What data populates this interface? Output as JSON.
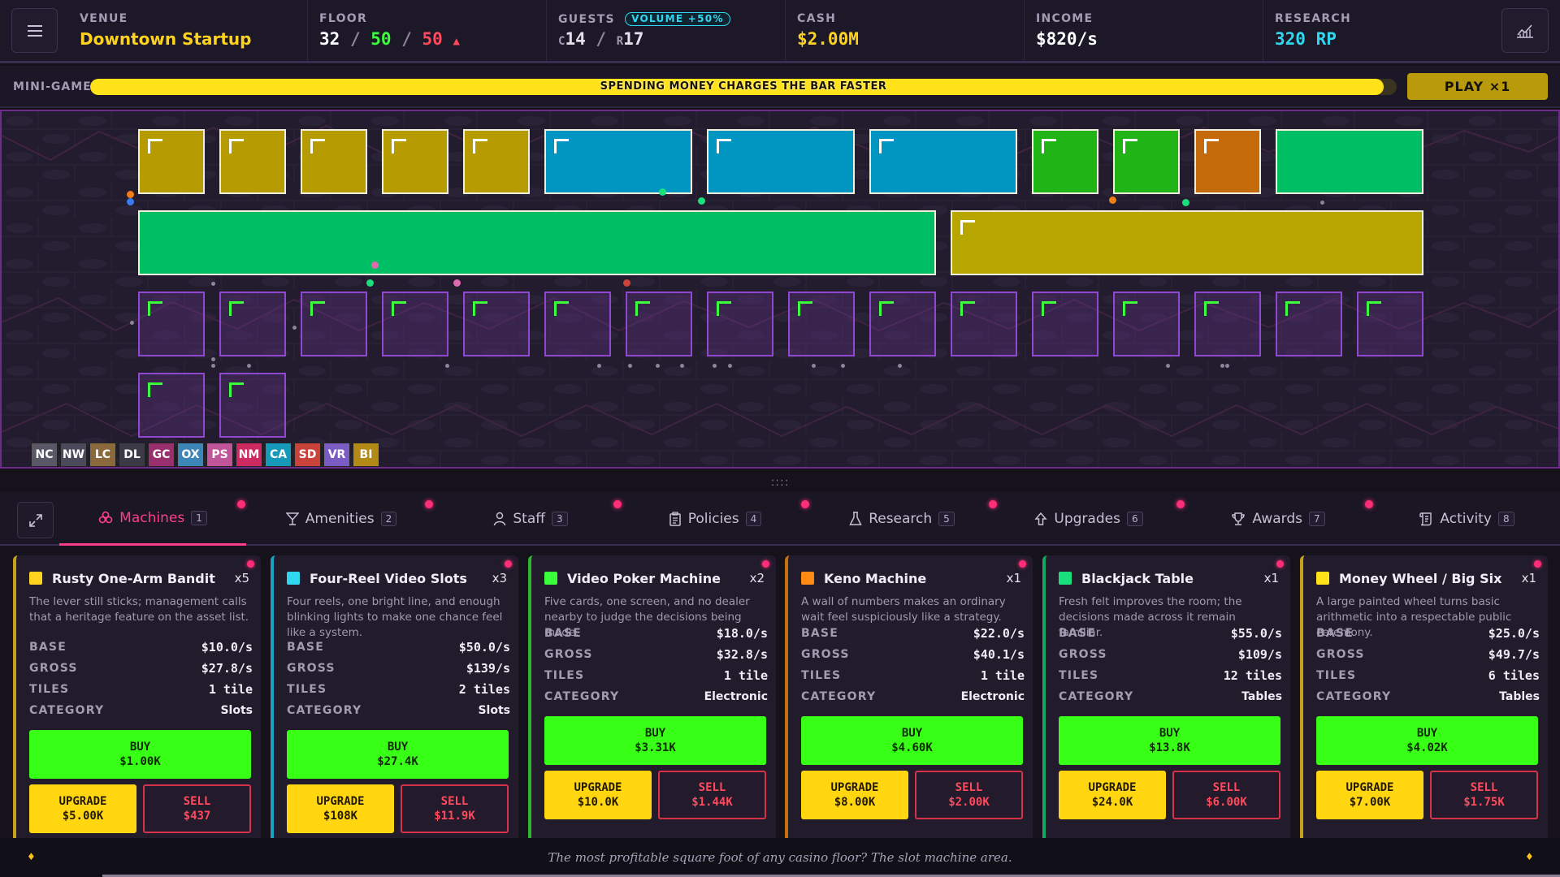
{
  "header": {
    "venue_label": "VENUE",
    "venue_name": "Downtown Startup",
    "floor_label": "FLOOR",
    "floor_used": "32",
    "floor_sep1": "/",
    "floor_capacity": "50",
    "floor_sep2": "/",
    "floor_max": "50",
    "floor_arrow": "▲",
    "guests_label": "GUESTS",
    "guests_badge": "VOLUME +50%",
    "guests_c_prefix": "C",
    "guests_c": "14",
    "guests_sep": "/",
    "guests_r_prefix": "R",
    "guests_r": "17",
    "cash_label": "CASH",
    "cash_value": "$2.00M",
    "income_label": "INCOME",
    "income_value": "$820/s",
    "research_label": "RESEARCH",
    "research_value": "320 RP",
    "colors": {
      "venue": "#ffd21f",
      "floor_used": "#ffffff",
      "floor_capacity": "#3cff3c",
      "floor_max": "#ff4a5e",
      "cash": "#ffd21f",
      "income": "#ffffff",
      "research": "#2fd8f0"
    }
  },
  "minigame": {
    "label": "MINI-GAME",
    "bar_text": "SPENDING MONEY CHARGES THE BAR FASTER",
    "progress": 0.99,
    "play_label": "PLAY ×1"
  },
  "floor": {
    "legend": [
      {
        "code": "NC",
        "color": "#5a5866"
      },
      {
        "code": "NW",
        "color": "#4b4a5a"
      },
      {
        "code": "LC",
        "color": "#8a6a3c"
      },
      {
        "code": "DL",
        "color": "#3d3a48"
      },
      {
        "code": "GC",
        "color": "#9a2f6e"
      },
      {
        "code": "OX",
        "color": "#3c86b8"
      },
      {
        "code": "PS",
        "color": "#c0559a"
      },
      {
        "code": "NM",
        "color": "#cc2a60"
      },
      {
        "code": "CA",
        "color": "#1699b8"
      },
      {
        "code": "SD",
        "color": "#c9433a"
      },
      {
        "code": "VR",
        "color": "#7b5cc4"
      },
      {
        "code": "BI",
        "color": "#b38a16"
      }
    ]
  },
  "tabs": [
    {
      "label": "Machines",
      "count": "1",
      "icon": "slot-machine-icon",
      "active": true
    },
    {
      "label": "Amenities",
      "count": "2",
      "icon": "cocktail-icon",
      "active": false
    },
    {
      "label": "Staff",
      "count": "3",
      "icon": "person-icon",
      "active": false
    },
    {
      "label": "Policies",
      "count": "4",
      "icon": "clipboard-icon",
      "active": false
    },
    {
      "label": "Research",
      "count": "5",
      "icon": "flask-icon",
      "active": false
    },
    {
      "label": "Upgrades",
      "count": "6",
      "icon": "arrow-up-icon",
      "active": false
    },
    {
      "label": "Awards",
      "count": "7",
      "icon": "trophy-icon",
      "active": false
    },
    {
      "label": "Activity",
      "count": "8",
      "icon": "scroll-icon",
      "active": false
    }
  ],
  "cards": [
    {
      "name": "Rusty One-Arm Bandit",
      "qty": "x5",
      "color": "#ffd21f",
      "border": "#c6a11b",
      "desc": "The lever still sticks; management calls that a heritage feature on the asset list.",
      "base_label": "BASE",
      "base": "$10.0/s",
      "gross_label": "GROSS",
      "gross": "$27.8/s",
      "tiles_label": "TILES",
      "tiles": "1 tile",
      "category_label": "CATEGORY",
      "category": "Slots",
      "buy_label": "BUY",
      "buy_price": "$1.00K",
      "upgrade_label": "UPGRADE",
      "upgrade_price": "$5.00K",
      "sell_label": "SELL",
      "sell_price": "$437"
    },
    {
      "name": "Four-Reel Video Slots",
      "qty": "x3",
      "color": "#2fd8f0",
      "border": "#1c9fc0",
      "desc": "Four reels, one bright line, and enough blinking lights to make one chance feel like a system.",
      "base_label": "BASE",
      "base": "$50.0/s",
      "gross_label": "GROSS",
      "gross": "$139/s",
      "tiles_label": "TILES",
      "tiles": "2 tiles",
      "category_label": "CATEGORY",
      "category": "Slots",
      "buy_label": "BUY",
      "buy_price": "$27.4K",
      "upgrade_label": "UPGRADE",
      "upgrade_price": "$108K",
      "sell_label": "SELL",
      "sell_price": "$11.9K"
    },
    {
      "name": "Video Poker Machine",
      "qty": "x2",
      "color": "#3cff3c",
      "border": "#2fb52f",
      "desc": "Five cards, one screen, and no dealer nearby to judge the decisions being made.",
      "base_label": "BASE",
      "base": "$18.0/s",
      "gross_label": "GROSS",
      "gross": "$32.8/s",
      "tiles_label": "TILES",
      "tiles": "1 tile",
      "category_label": "CATEGORY",
      "category": "Electronic",
      "buy_label": "BUY",
      "buy_price": "$3.31K",
      "upgrade_label": "UPGRADE",
      "upgrade_price": "$10.0K",
      "sell_label": "SELL",
      "sell_price": "$1.44K"
    },
    {
      "name": "Keno Machine",
      "qty": "x1",
      "color": "#ff8a12",
      "border": "#c8700f",
      "desc": "A wall of numbers makes an ordinary wait feel suspiciously like a strategy.",
      "base_label": "BASE",
      "base": "$22.0/s",
      "gross_label": "GROSS",
      "gross": "$40.1/s",
      "tiles_label": "TILES",
      "tiles": "1 tile",
      "category_label": "CATEGORY",
      "category": "Electronic",
      "buy_label": "BUY",
      "buy_price": "$4.60K",
      "upgrade_label": "UPGRADE",
      "upgrade_price": "$8.00K",
      "sell_label": "SELL",
      "sell_price": "$2.00K"
    },
    {
      "name": "Blackjack Table",
      "qty": "x1",
      "color": "#19e07a",
      "border": "#15a865",
      "desc": "Fresh felt improves the room; the decisions made across it remain familiar.",
      "base_label": "BASE",
      "base": "$55.0/s",
      "gross_label": "GROSS",
      "gross": "$109/s",
      "tiles_label": "TILES",
      "tiles": "12 tiles",
      "category_label": "CATEGORY",
      "category": "Tables",
      "buy_label": "BUY",
      "buy_price": "$13.8K",
      "upgrade_label": "UPGRADE",
      "upgrade_price": "$24.0K",
      "sell_label": "SELL",
      "sell_price": "$6.00K"
    },
    {
      "name": "Money Wheel / Big Six",
      "qty": "x1",
      "color": "#ffe21a",
      "border": "#c6a11b",
      "desc": "A large painted wheel turns basic arithmetic into a respectable public ceremony.",
      "base_label": "BASE",
      "base": "$25.0/s",
      "gross_label": "GROSS",
      "gross": "$49.7/s",
      "tiles_label": "TILES",
      "tiles": "6 tiles",
      "category_label": "CATEGORY",
      "category": "Tables",
      "buy_label": "BUY",
      "buy_price": "$4.02K",
      "upgrade_label": "UPGRADE",
      "upgrade_price": "$7.00K",
      "sell_label": "SELL",
      "sell_price": "$1.75K"
    }
  ],
  "ticker": {
    "text": "The most profitable square foot of any casino floor? The slot machine area.",
    "diamond": "♦"
  }
}
